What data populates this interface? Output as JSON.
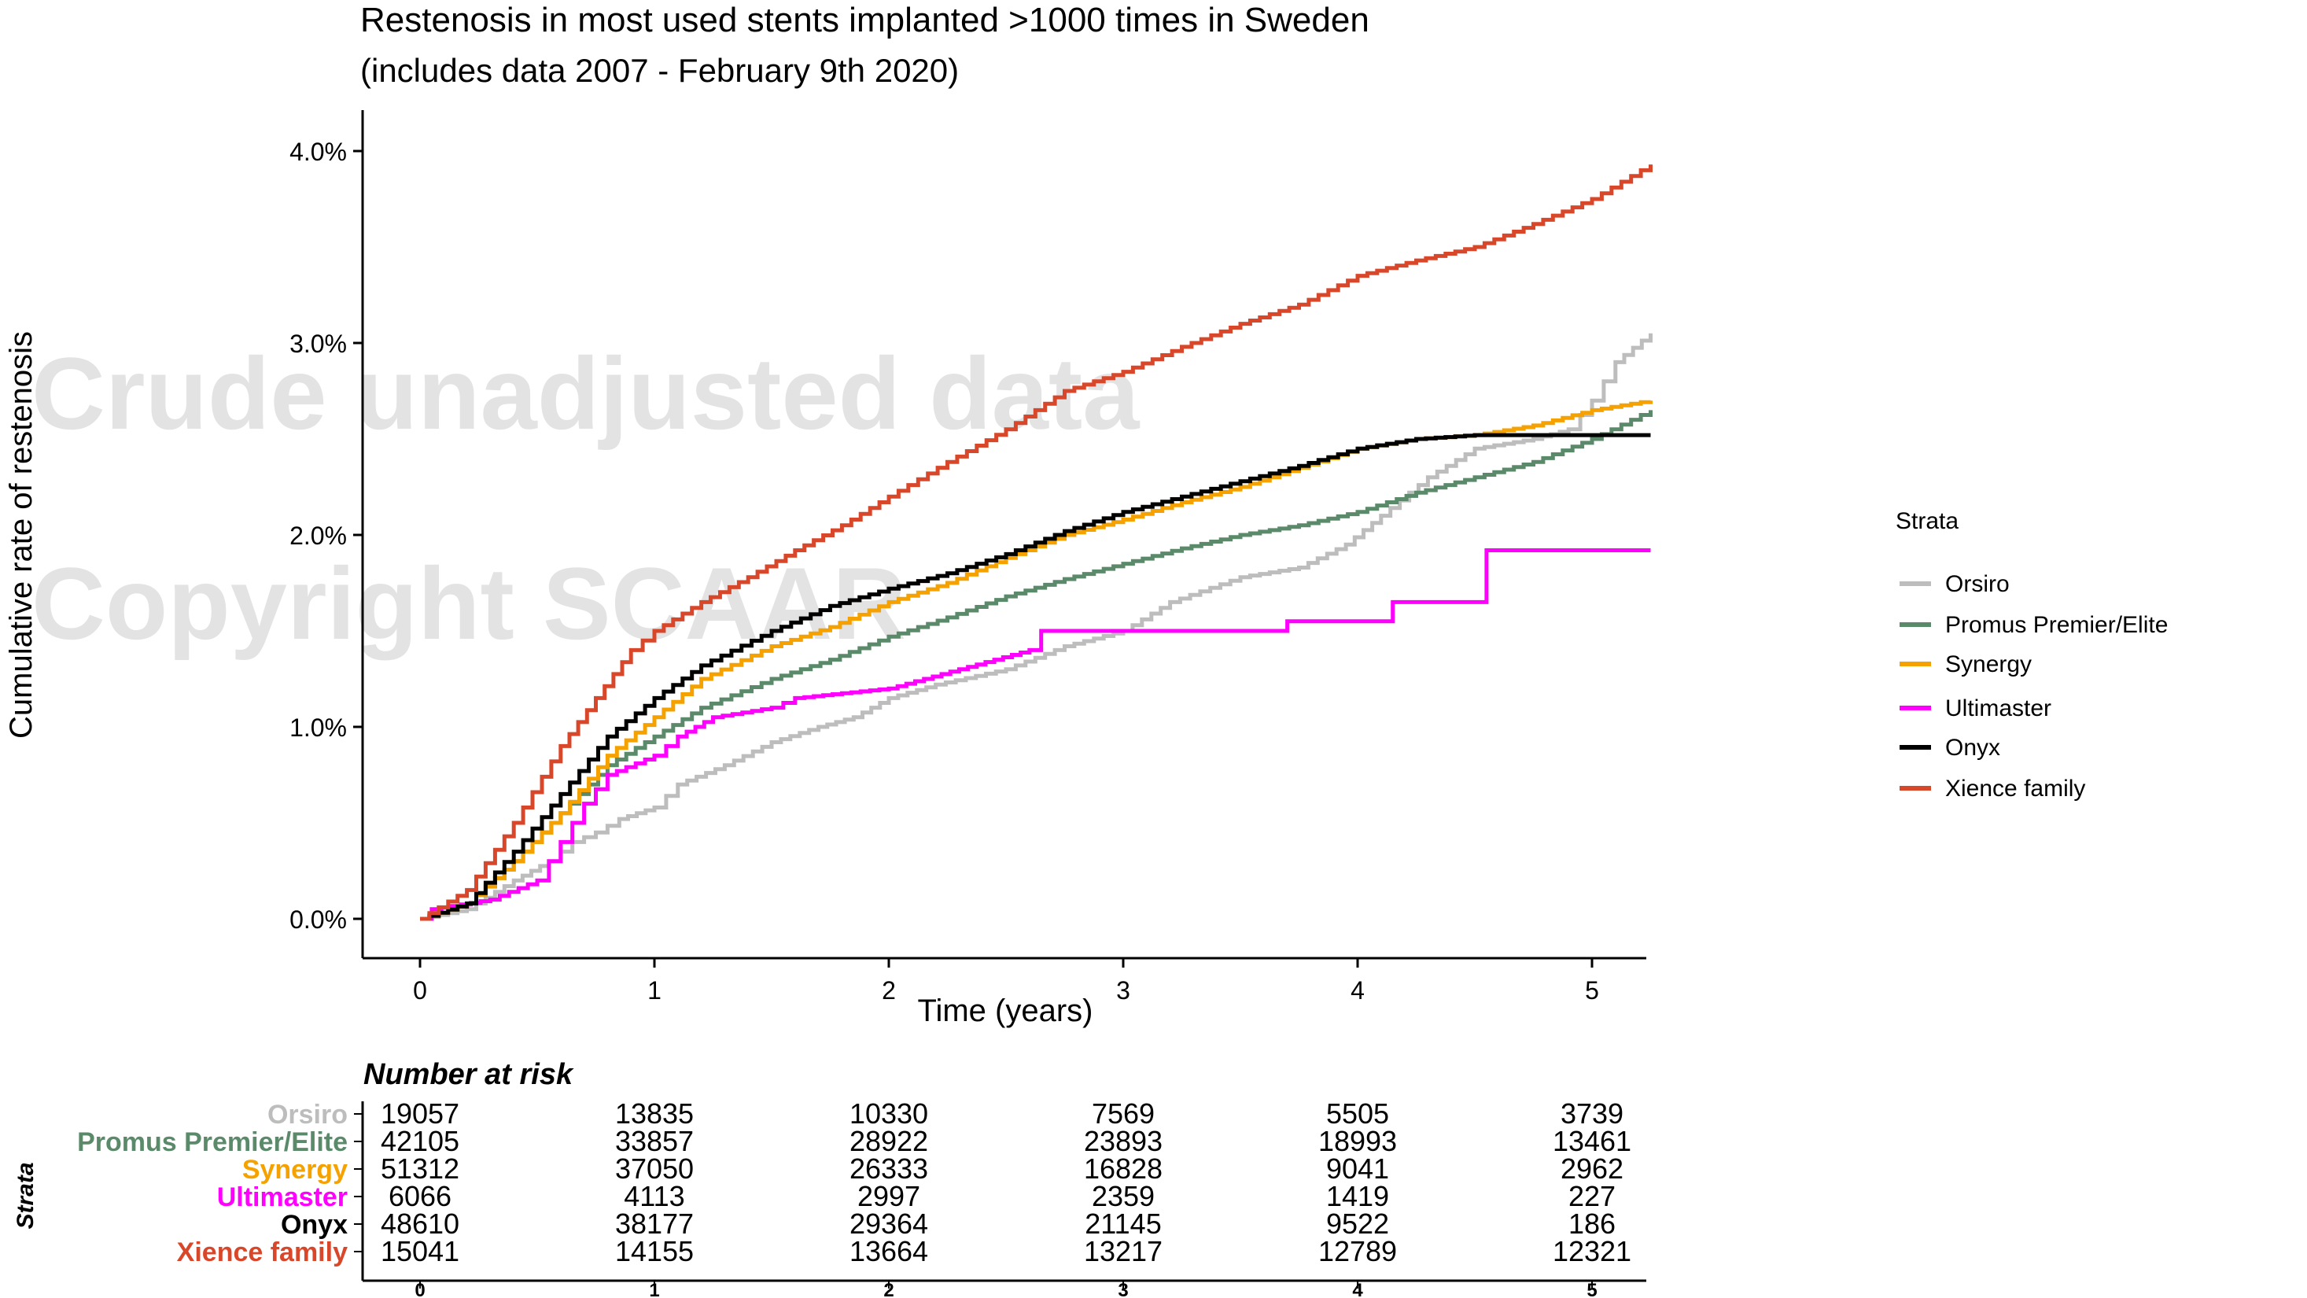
{
  "chart_data": {
    "type": "line",
    "title": "Restenosis in most used stents implanted >1000 times in Sweden",
    "subtitle": "(includes data 2007 - February 9th 2020)",
    "xlabel": "Time (years)",
    "ylabel": "Cumulative rate of restenosis",
    "xlim": [
      -0.25,
      5.25
    ],
    "ylim": [
      -0.2,
      4.2
    ],
    "x_ticks": [
      "0",
      "1",
      "2",
      "3",
      "4",
      "5"
    ],
    "y_ticks": [
      "0.0%",
      "1.0%",
      "2.0%",
      "3.0%",
      "4.0%"
    ],
    "grid": false,
    "legend_title": "Strata",
    "legend_position": "right",
    "watermark": [
      "Crude unadjusted data",
      "Copyright SCAAR"
    ],
    "series": [
      {
        "name": "Orsiro",
        "color": "#bdbdbd",
        "points": [
          [
            0,
            0
          ],
          [
            0.2,
            0.05
          ],
          [
            0.4,
            0.2
          ],
          [
            0.55,
            0.3
          ],
          [
            0.65,
            0.4
          ],
          [
            0.75,
            0.45
          ],
          [
            0.85,
            0.52
          ],
          [
            1.0,
            0.58
          ],
          [
            1.1,
            0.7
          ],
          [
            1.3,
            0.8
          ],
          [
            1.5,
            0.92
          ],
          [
            1.7,
            1.0
          ],
          [
            1.85,
            1.05
          ],
          [
            2.0,
            1.15
          ],
          [
            2.2,
            1.22
          ],
          [
            2.5,
            1.3
          ],
          [
            2.75,
            1.42
          ],
          [
            3.0,
            1.5
          ],
          [
            3.2,
            1.65
          ],
          [
            3.5,
            1.78
          ],
          [
            3.75,
            1.83
          ],
          [
            3.95,
            1.95
          ],
          [
            4.1,
            2.1
          ],
          [
            4.3,
            2.3
          ],
          [
            4.5,
            2.45
          ],
          [
            4.75,
            2.5
          ],
          [
            4.9,
            2.55
          ],
          [
            5.0,
            2.7
          ],
          [
            5.1,
            2.9
          ],
          [
            5.25,
            3.05
          ]
        ]
      },
      {
        "name": "Promus Premier/Elite",
        "color": "#5b8a6b",
        "points": [
          [
            0,
            0
          ],
          [
            0.2,
            0.08
          ],
          [
            0.4,
            0.3
          ],
          [
            0.6,
            0.55
          ],
          [
            0.8,
            0.8
          ],
          [
            1.0,
            0.95
          ],
          [
            1.2,
            1.1
          ],
          [
            1.5,
            1.25
          ],
          [
            1.75,
            1.35
          ],
          [
            2.0,
            1.47
          ],
          [
            2.25,
            1.57
          ],
          [
            2.5,
            1.68
          ],
          [
            2.75,
            1.77
          ],
          [
            3.0,
            1.85
          ],
          [
            3.25,
            1.93
          ],
          [
            3.5,
            2.0
          ],
          [
            3.75,
            2.05
          ],
          [
            4.0,
            2.12
          ],
          [
            4.25,
            2.22
          ],
          [
            4.5,
            2.3
          ],
          [
            4.75,
            2.38
          ],
          [
            5.0,
            2.5
          ],
          [
            5.25,
            2.65
          ]
        ]
      },
      {
        "name": "Synergy",
        "color": "#f5a200",
        "points": [
          [
            0,
            0
          ],
          [
            0.2,
            0.08
          ],
          [
            0.4,
            0.3
          ],
          [
            0.6,
            0.55
          ],
          [
            0.8,
            0.85
          ],
          [
            1.0,
            1.05
          ],
          [
            1.2,
            1.25
          ],
          [
            1.5,
            1.42
          ],
          [
            1.75,
            1.52
          ],
          [
            2.0,
            1.65
          ],
          [
            2.25,
            1.75
          ],
          [
            2.5,
            1.88
          ],
          [
            2.75,
            2.0
          ],
          [
            3.0,
            2.08
          ],
          [
            3.25,
            2.17
          ],
          [
            3.5,
            2.25
          ],
          [
            3.75,
            2.35
          ],
          [
            4.0,
            2.45
          ],
          [
            4.25,
            2.5
          ],
          [
            4.5,
            2.52
          ],
          [
            4.75,
            2.57
          ],
          [
            5.0,
            2.65
          ],
          [
            5.25,
            2.7
          ]
        ]
      },
      {
        "name": "Ultimaster",
        "color": "#ff00ff",
        "points": [
          [
            0,
            0
          ],
          [
            0.05,
            0.05
          ],
          [
            0.3,
            0.1
          ],
          [
            0.5,
            0.2
          ],
          [
            0.6,
            0.4
          ],
          [
            0.7,
            0.6
          ],
          [
            0.8,
            0.75
          ],
          [
            1.0,
            0.85
          ],
          [
            1.1,
            0.95
          ],
          [
            1.25,
            1.05
          ],
          [
            1.5,
            1.1
          ],
          [
            1.6,
            1.15
          ],
          [
            2.0,
            1.2
          ],
          [
            2.15,
            1.25
          ],
          [
            2.3,
            1.3
          ],
          [
            2.45,
            1.35
          ],
          [
            2.6,
            1.4
          ],
          [
            2.65,
            1.5
          ],
          [
            3.0,
            1.5
          ],
          [
            3.7,
            1.5
          ],
          [
            3.7,
            1.55
          ],
          [
            4.15,
            1.55
          ],
          [
            4.15,
            1.65
          ],
          [
            4.5,
            1.65
          ],
          [
            4.55,
            1.7
          ],
          [
            4.55,
            1.92
          ],
          [
            5.25,
            1.92
          ]
        ]
      },
      {
        "name": "Onyx",
        "color": "#000000",
        "points": [
          [
            0,
            0
          ],
          [
            0.2,
            0.08
          ],
          [
            0.4,
            0.35
          ],
          [
            0.6,
            0.65
          ],
          [
            0.8,
            0.95
          ],
          [
            1.0,
            1.15
          ],
          [
            1.2,
            1.32
          ],
          [
            1.5,
            1.5
          ],
          [
            1.75,
            1.63
          ],
          [
            2.0,
            1.72
          ],
          [
            2.25,
            1.8
          ],
          [
            2.5,
            1.9
          ],
          [
            2.75,
            2.02
          ],
          [
            3.0,
            2.12
          ],
          [
            3.25,
            2.2
          ],
          [
            3.5,
            2.28
          ],
          [
            3.75,
            2.36
          ],
          [
            4.0,
            2.45
          ],
          [
            4.25,
            2.5
          ],
          [
            4.5,
            2.52
          ],
          [
            5.25,
            2.52
          ]
        ]
      },
      {
        "name": "Xience family",
        "color": "#d9472b",
        "points": [
          [
            0,
            0
          ],
          [
            0.2,
            0.15
          ],
          [
            0.4,
            0.5
          ],
          [
            0.6,
            0.9
          ],
          [
            0.75,
            1.15
          ],
          [
            0.9,
            1.4
          ],
          [
            1.0,
            1.5
          ],
          [
            1.2,
            1.65
          ],
          [
            1.4,
            1.78
          ],
          [
            1.6,
            1.92
          ],
          [
            1.8,
            2.05
          ],
          [
            2.0,
            2.2
          ],
          [
            2.25,
            2.38
          ],
          [
            2.5,
            2.55
          ],
          [
            2.75,
            2.75
          ],
          [
            3.0,
            2.85
          ],
          [
            3.25,
            2.98
          ],
          [
            3.5,
            3.1
          ],
          [
            3.75,
            3.2
          ],
          [
            4.0,
            3.35
          ],
          [
            4.25,
            3.43
          ],
          [
            4.5,
            3.5
          ],
          [
            4.75,
            3.62
          ],
          [
            5.0,
            3.75
          ],
          [
            5.25,
            3.93
          ]
        ]
      }
    ],
    "risk_table": {
      "title": "Number at risk",
      "axis_label": "Strata",
      "x_ticks": [
        "0",
        "1",
        "2",
        "3",
        "4",
        "5"
      ],
      "rows": [
        {
          "name": "Orsiro",
          "color": "#bdbdbd",
          "values": [
            "19057",
            "13835",
            "10330",
            "7569",
            "5505",
            "3739"
          ]
        },
        {
          "name": "Promus Premier/Elite",
          "color": "#5b8a6b",
          "values": [
            "42105",
            "33857",
            "28922",
            "23893",
            "18993",
            "13461"
          ]
        },
        {
          "name": "Synergy",
          "color": "#f5a200",
          "values": [
            "51312",
            "37050",
            "26333",
            "16828",
            "9041",
            "2962"
          ]
        },
        {
          "name": "Ultimaster",
          "color": "#ff00ff",
          "values": [
            "6066",
            "4113",
            "2997",
            "2359",
            "1419",
            "227"
          ]
        },
        {
          "name": "Onyx",
          "color": "#000000",
          "values": [
            "48610",
            "38177",
            "29364",
            "21145",
            "9522",
            "186"
          ]
        },
        {
          "name": "Xience family",
          "color": "#d9472b",
          "values": [
            "15041",
            "14155",
            "13664",
            "13217",
            "12789",
            "12321"
          ]
        }
      ]
    }
  }
}
